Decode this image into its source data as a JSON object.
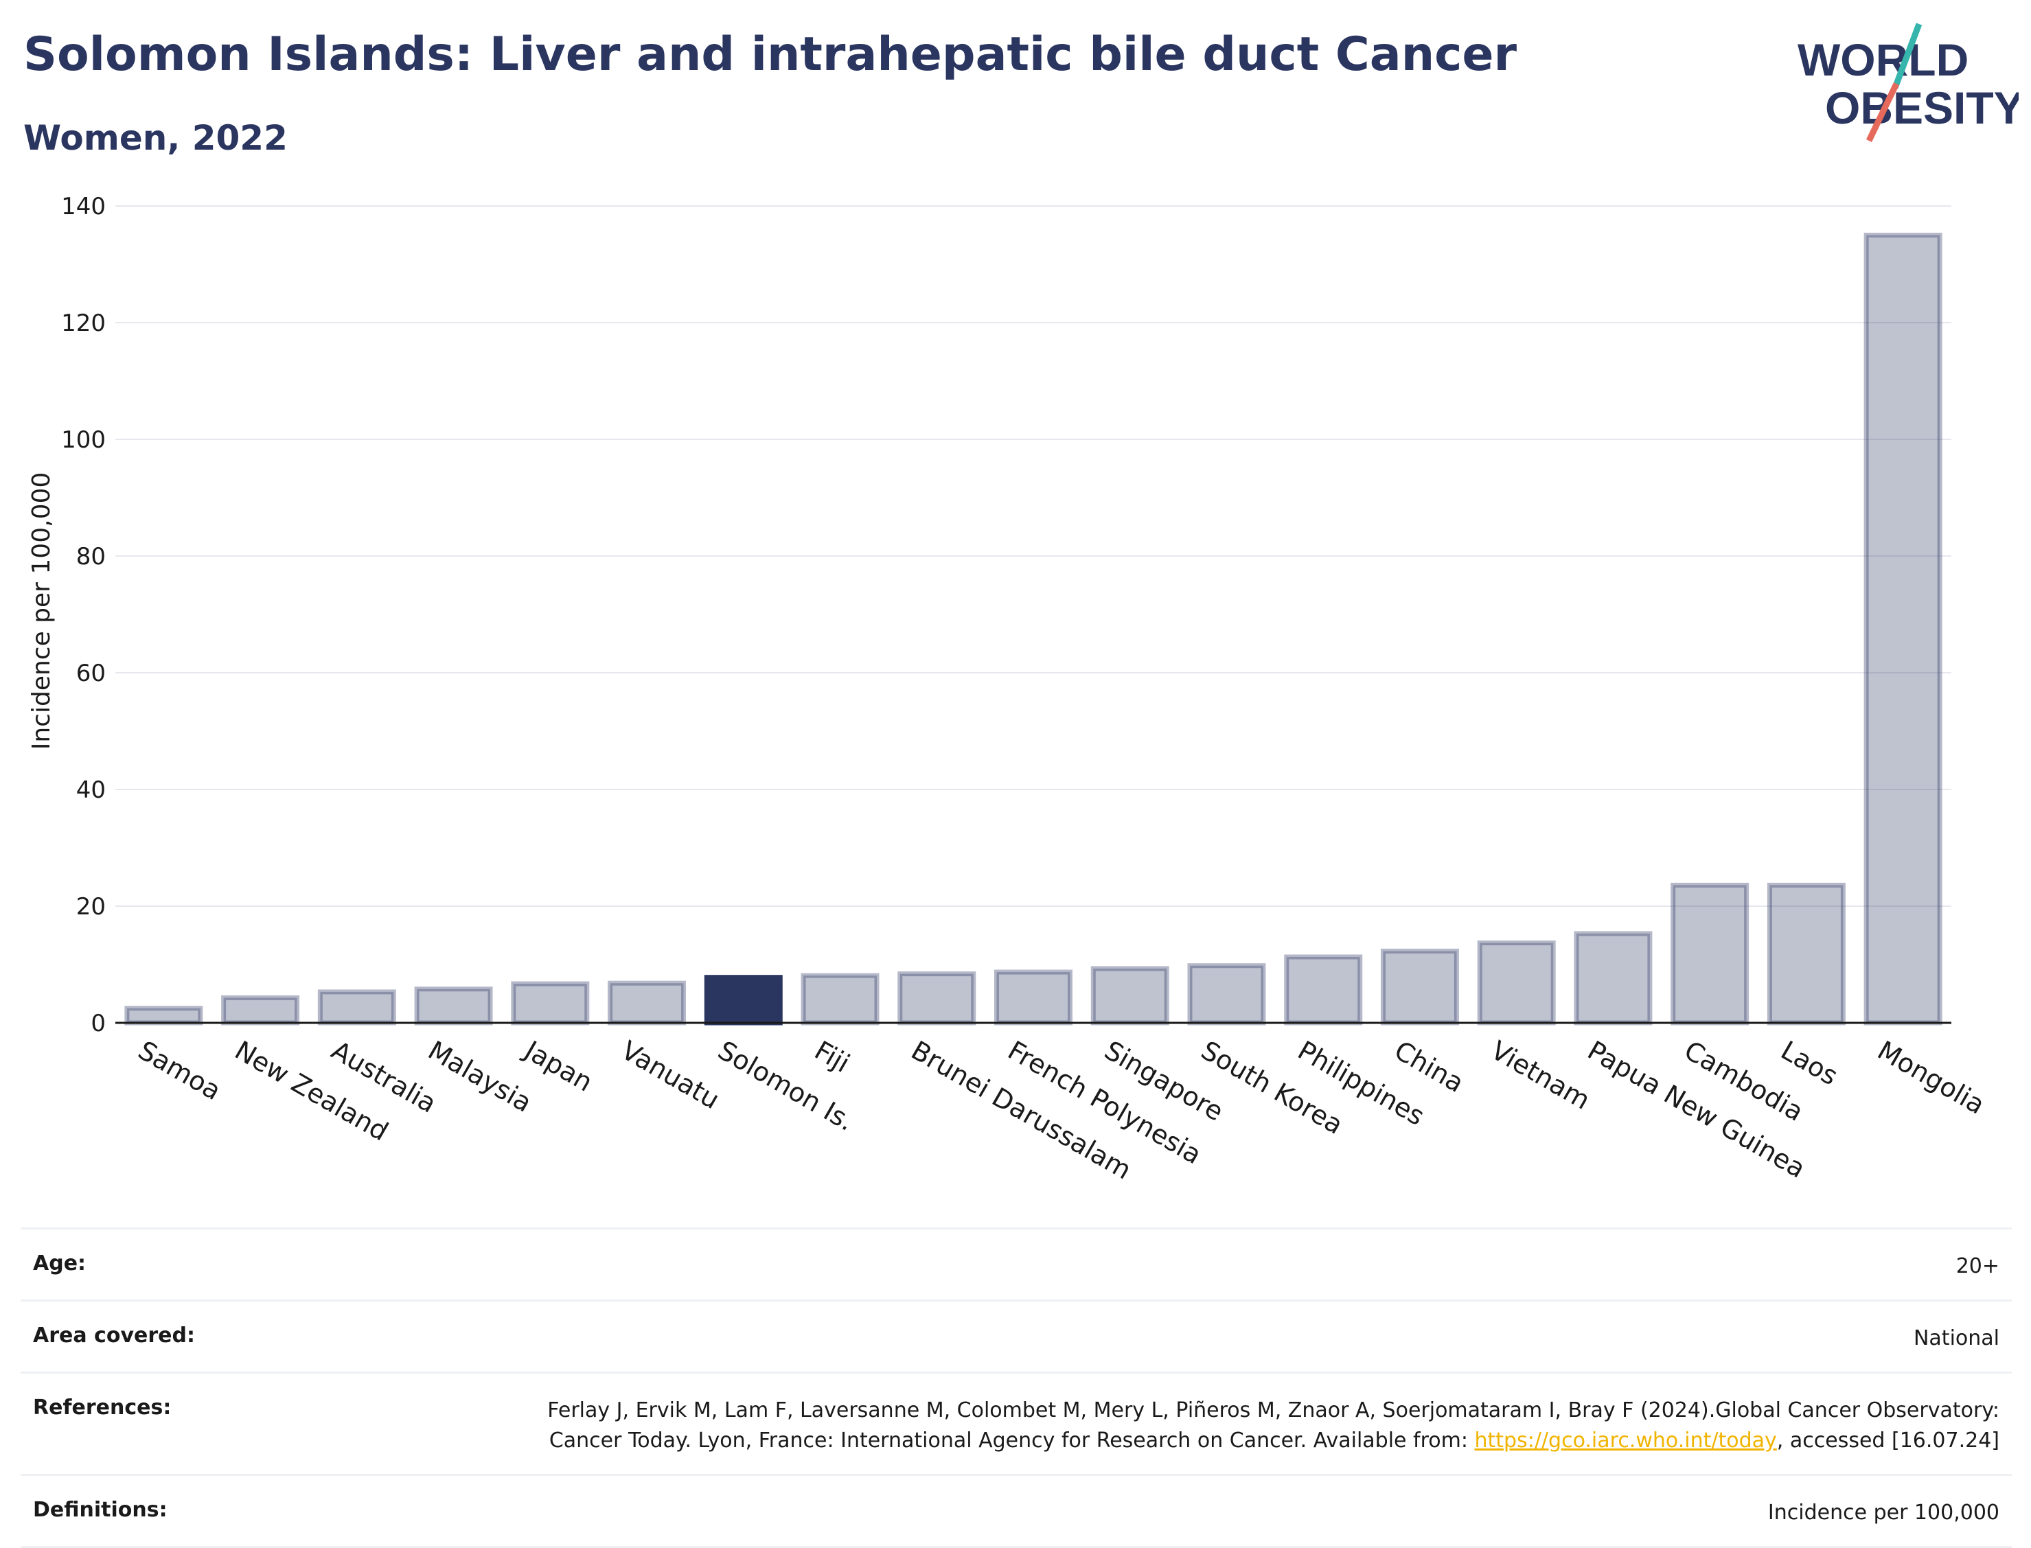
{
  "header": {
    "title": "Solomon Islands: Liver and intrahepatic bile duct Cancer",
    "subtitle": "Women, 2022"
  },
  "logo": {
    "line1": "WORLD",
    "line2": "OBESITY"
  },
  "chart_data": {
    "type": "bar",
    "ylabel": "Incidence per 100,000",
    "ylim": [
      0,
      140
    ],
    "yticks": [
      0,
      20,
      40,
      60,
      80,
      100,
      120,
      140
    ],
    "grid": true,
    "highlight": "Solomon Is.",
    "categories": [
      "Samoa",
      "New Zealand",
      "Australia",
      "Malaysia",
      "Japan",
      "Vanuatu",
      "Solomon Is.",
      "Fiji",
      "Brunei Darussalam",
      "French Polynesia",
      "Singapore",
      "South Korea",
      "Philippines",
      "China",
      "Vietnam",
      "Papua New Guinea",
      "Cambodia",
      "Laos",
      "Mongolia"
    ],
    "values": [
      2.5,
      4.3,
      5.3,
      5.8,
      6.7,
      6.8,
      7.8,
      8.1,
      8.4,
      8.7,
      9.3,
      9.8,
      11.3,
      12.3,
      13.7,
      15.3,
      23.6,
      23.6,
      135
    ]
  },
  "colors": {
    "bar": "#2a3560",
    "highlight": "#2a3560",
    "title": "#2a3560",
    "grid": "#e6e8ee",
    "logo_accent_teal": "#35b5ac",
    "logo_accent_coral": "#e56a5c",
    "link": "#f0b400"
  },
  "info": {
    "age_label": "Age:",
    "age_value": "20+",
    "area_label": "Area covered:",
    "area_value": "National",
    "references_label": "References:",
    "references_text": "Ferlay J, Ervik M, Lam F, Laversanne M, Colombet M, Mery L, Piñeros M, Znaor A, Soerjomataram I, Bray F (2024).Global Cancer Observatory: Cancer Today. Lyon, France: International Agency for Research on Cancer. Available from: ",
    "references_link": "https://gco.iarc.who.int/today",
    "references_suffix": ", accessed [16.07.24]",
    "definitions_label": "Definitions:",
    "definitions_value": "Incidence per 100,000"
  }
}
